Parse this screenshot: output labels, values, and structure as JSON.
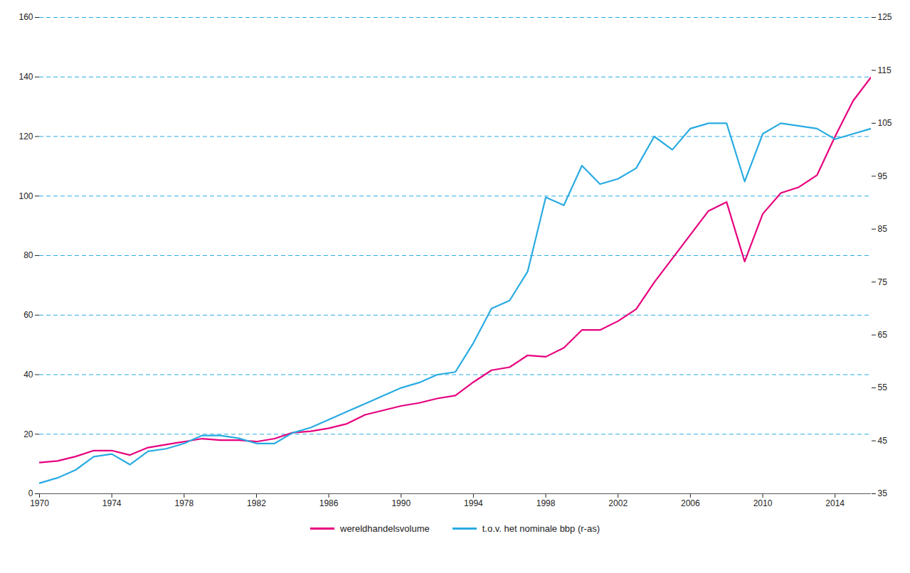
{
  "chart_data": {
    "type": "line",
    "x": [
      1970,
      1971,
      1972,
      1973,
      1974,
      1975,
      1976,
      1977,
      1978,
      1979,
      1980,
      1981,
      1982,
      1983,
      1984,
      1985,
      1986,
      1987,
      1988,
      1989,
      1990,
      1991,
      1992,
      1993,
      1994,
      1995,
      1996,
      1997,
      1998,
      1999,
      2000,
      2001,
      2002,
      2003,
      2004,
      2005,
      2006,
      2007,
      2008,
      2009,
      2010,
      2011,
      2012,
      2013,
      2014,
      2015,
      2016
    ],
    "series": [
      {
        "name": "wereldhandelsvolume",
        "color": "#e6007e",
        "values": [
          10.5,
          11.0,
          12.5,
          14.5,
          14.5,
          13.0,
          15.5,
          16.5,
          17.5,
          18.5,
          18.0,
          18.0,
          17.5,
          18.5,
          20.5,
          21.0,
          22.0,
          23.5,
          26.5,
          28.0,
          29.5,
          30.5,
          32.0,
          33.0,
          37.5,
          41.5,
          42.5,
          46.5,
          46.0,
          49.0,
          55.0,
          55.0,
          58.0,
          62.0,
          71.0,
          79.0,
          87.0,
          95.0,
          98.0,
          78.0,
          94.0,
          101.0,
          103.0,
          107.0,
          120.0,
          132.0,
          140.0
        ]
      },
      {
        "name": "t.o.v. het nominale bbp (r-as)",
        "color": "#29abe2",
        "axis": "y2",
        "values": [
          37.0,
          38.0,
          39.5,
          42.0,
          42.5,
          40.5,
          43.0,
          43.5,
          44.5,
          46.0,
          46.0,
          45.5,
          44.5,
          44.5,
          46.5,
          47.5,
          49.0,
          50.5,
          52.0,
          53.5,
          55.0,
          56.0,
          57.5,
          58.0,
          63.5,
          70.0,
          71.5,
          77.0,
          91.0,
          89.5,
          97.0,
          93.5,
          94.5,
          96.5,
          102.5,
          100.0,
          104.0,
          105.0,
          105.0,
          94.0,
          103.0,
          105.0,
          104.5,
          104.0,
          102.0,
          103.0,
          104.0
        ]
      }
    ],
    "xlim": [
      1970,
      2016
    ],
    "xticks": [
      1970,
      1974,
      1978,
      1982,
      1986,
      1990,
      1994,
      1998,
      2002,
      2006,
      2010,
      2014
    ],
    "ylim": [
      0,
      160
    ],
    "yticks": [
      0,
      20,
      40,
      60,
      80,
      100,
      120,
      140,
      160
    ],
    "y2lim": [
      35,
      125
    ],
    "y2ticks": [
      35,
      45,
      55,
      65,
      75,
      85,
      95,
      105,
      115,
      125
    ],
    "grid": true,
    "legend": "bottom"
  }
}
